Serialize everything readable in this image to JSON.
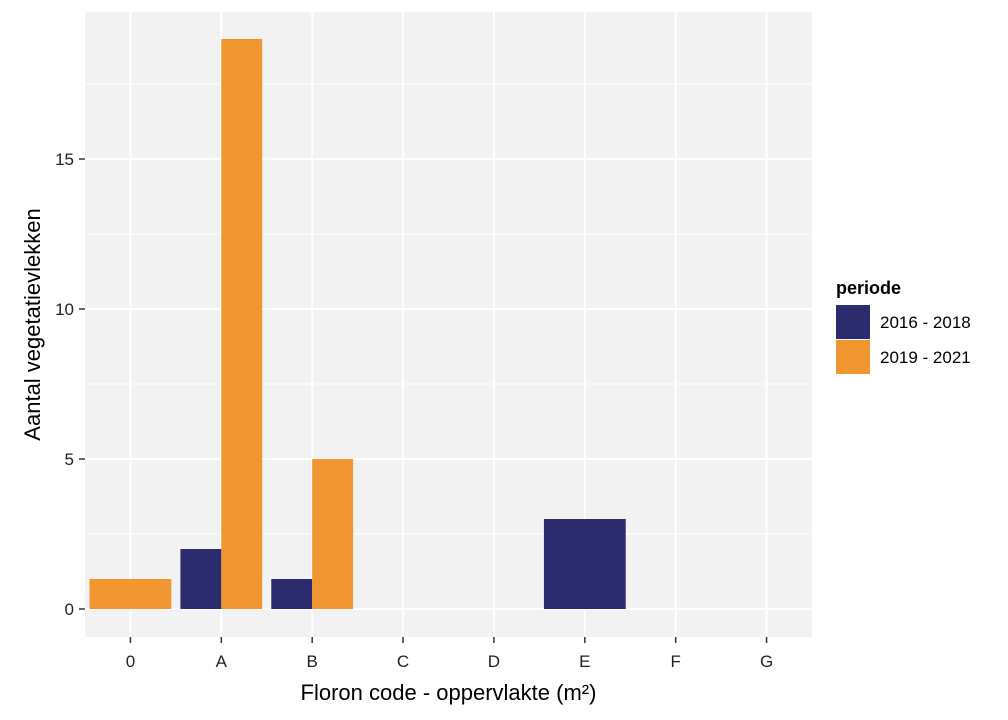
{
  "chart_data": {
    "type": "bar",
    "title": "",
    "xlabel": "Floron code - oppervlakte (m²)",
    "ylabel": "Aantal vegetatievlekken",
    "categories": [
      "0",
      "A",
      "B",
      "C",
      "D",
      "E",
      "F",
      "G"
    ],
    "series": [
      {
        "name": "2016 - 2018",
        "color": "#2b2b6e",
        "values": [
          0,
          2,
          1,
          0,
          0,
          3,
          0,
          0
        ]
      },
      {
        "name": "2019 - 2021",
        "color": "#ef9630",
        "values": [
          1,
          19,
          5,
          0,
          0,
          0,
          0,
          0
        ]
      }
    ],
    "ylim": [
      0,
      20
    ],
    "yticks": [
      0,
      5,
      10,
      15
    ],
    "grid": true,
    "legend": {
      "title": "periode",
      "position": "right"
    },
    "colors": {
      "panel": "#f2f2f2",
      "grid": "#ffffff"
    }
  }
}
